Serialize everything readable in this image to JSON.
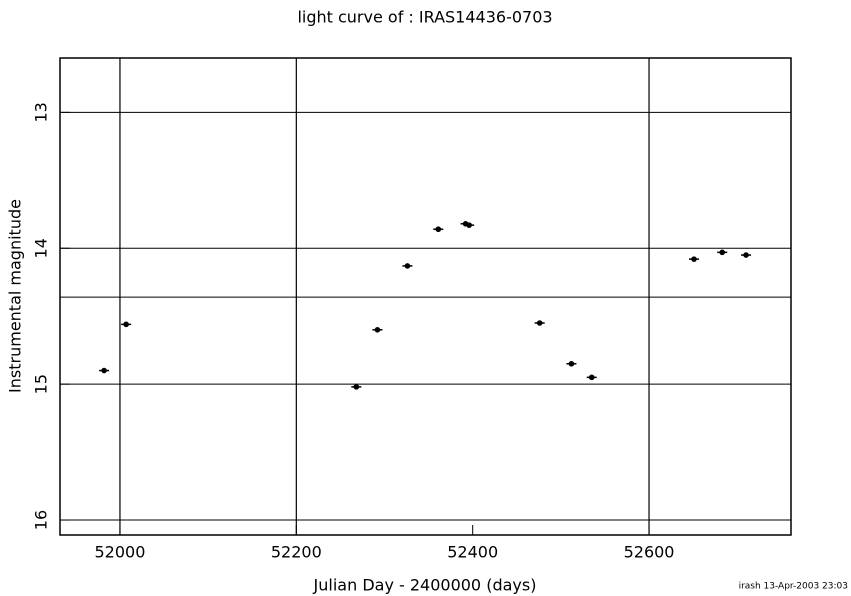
{
  "chart_data": {
    "type": "scatter",
    "title": "light curve of : IRAS14436-0703",
    "x_label": "Julian Day - 2400000 (days)",
    "y_label": "Instrumental magnitude",
    "footer": "irash 13-Apr-2003 23:03",
    "x": [
      51982,
      52007,
      52268,
      52292,
      52326,
      52361,
      52392,
      52396,
      52476,
      52512,
      52535,
      52651,
      52683,
      52710
    ],
    "series": [
      {
        "color": "#000000",
        "values": [
          14.9,
          14.56,
          15.02,
          14.6,
          14.13,
          13.86,
          13.82,
          13.83,
          14.55,
          14.85,
          14.95,
          14.08,
          14.03,
          14.05
        ]
      }
    ],
    "xlim": [
      51932,
      52761
    ],
    "ylim": [
      16.11,
      12.6
    ],
    "xticks": [
      52000,
      52200,
      52400,
      52600
    ],
    "yticks": [
      13,
      14,
      15,
      16
    ],
    "xgrid": [
      52000,
      52200,
      52600
    ],
    "ygrid": [
      13,
      14,
      14.36,
      15,
      16
    ],
    "y_inverted": true
  }
}
